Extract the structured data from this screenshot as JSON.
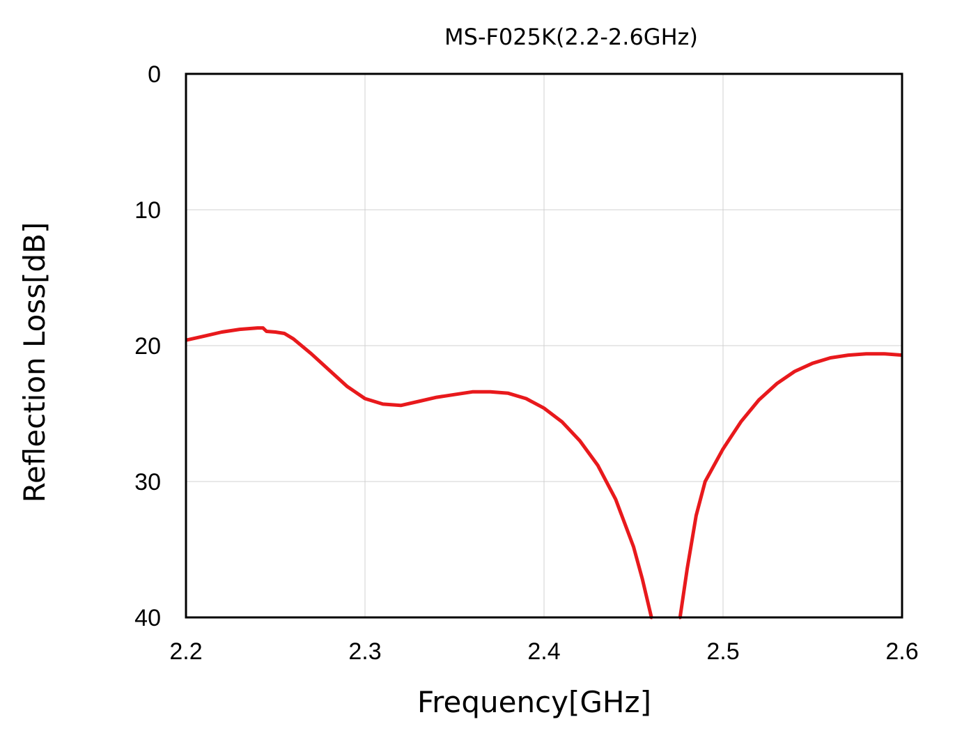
{
  "chart_data": {
    "type": "line",
    "title": "MS-F025K(2.2-2.6GHz)",
    "xlabel": "Frequency[GHz]",
    "ylabel": "Reflection Loss[dB]",
    "xlim": [
      2.2,
      2.6
    ],
    "ylim": [
      0,
      40
    ],
    "y_inverted": true,
    "grid": true,
    "x_ticks": [
      2.2,
      2.3,
      2.4,
      2.5,
      2.6
    ],
    "x_tick_labels": [
      "2.2",
      "2.3",
      "2.4",
      "2.5",
      "2.6"
    ],
    "y_ticks": [
      0,
      10,
      20,
      30,
      40
    ],
    "y_tick_labels": [
      "0",
      "10",
      "20",
      "30",
      "40"
    ],
    "series": [
      {
        "name": "MS-F025K",
        "color": "#e8191c",
        "segments": [
          {
            "x": [
              2.2,
              2.21,
              2.22,
              2.23,
              2.24,
              2.243,
              2.245,
              2.25,
              2.255,
              2.26,
              2.27,
              2.28,
              2.29,
              2.3,
              2.31,
              2.32,
              2.33,
              2.34,
              2.35,
              2.36,
              2.37,
              2.38,
              2.39,
              2.4,
              2.41,
              2.42,
              2.43,
              2.44,
              2.45,
              2.455,
              2.46,
              2.4605
            ],
            "y": [
              19.6,
              19.3,
              19.0,
              18.8,
              18.7,
              18.7,
              18.95,
              19.0,
              19.1,
              19.5,
              20.6,
              21.8,
              23.0,
              23.9,
              24.3,
              24.4,
              24.1,
              23.8,
              23.6,
              23.4,
              23.4,
              23.5,
              23.9,
              24.6,
              25.6,
              27.0,
              28.8,
              31.3,
              34.8,
              37.2,
              40.0,
              40.0
            ]
          },
          {
            "x": [
              2.4755,
              2.476,
              2.48,
              2.485,
              2.49,
              2.5,
              2.51,
              2.52,
              2.53,
              2.54,
              2.55,
              2.56,
              2.57,
              2.58,
              2.59,
              2.6
            ],
            "y": [
              40.0,
              40.0,
              36.4,
              32.5,
              30.0,
              27.6,
              25.6,
              24.0,
              22.8,
              21.9,
              21.3,
              20.9,
              20.7,
              20.6,
              20.6,
              20.7
            ]
          }
        ]
      }
    ]
  }
}
